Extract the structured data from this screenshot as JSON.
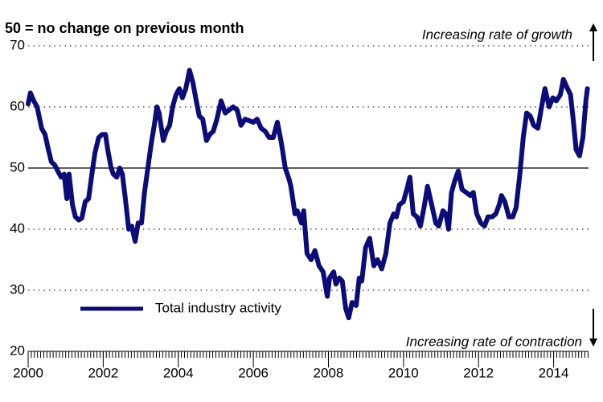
{
  "chart_data": {
    "type": "line",
    "title": "50 = no change on previous month",
    "annotations": [
      "Increasing rate of growth",
      "Increasing rate of contraction"
    ],
    "xlim": [
      2000,
      2014.93
    ],
    "xticks": [
      2000,
      2002,
      2004,
      2006,
      2008,
      2010,
      2012,
      2014
    ],
    "ylim": [
      20,
      70
    ],
    "yticks": [
      20,
      30,
      40,
      50,
      60,
      70
    ],
    "reference_line": 50,
    "grid": true,
    "legend": "lower left",
    "x": [
      2000.0,
      2000.06,
      2000.15,
      2000.24,
      2000.36,
      2000.45,
      2000.54,
      2000.62,
      2000.71,
      2000.79,
      2000.88,
      2000.96,
      2001.03,
      2001.09,
      2001.18,
      2001.26,
      2001.35,
      2001.43,
      2001.52,
      2001.61,
      2001.71,
      2001.78,
      2001.88,
      2001.97,
      2002.06,
      2002.12,
      2002.21,
      2002.27,
      2002.36,
      2002.44,
      2002.51,
      2002.59,
      2002.68,
      2002.76,
      2002.85,
      2002.93,
      2003.02,
      2003.1,
      2003.19,
      2003.28,
      2003.36,
      2003.43,
      2003.49,
      2003.6,
      2003.68,
      2003.77,
      2003.85,
      2003.94,
      2004.03,
      2004.11,
      2004.2,
      2004.3,
      2004.39,
      2004.48,
      2004.56,
      2004.65,
      2004.75,
      2004.84,
      2004.93,
      2005.03,
      2005.14,
      2005.25,
      2005.46,
      2005.57,
      2005.67,
      2005.78,
      2006.0,
      2006.1,
      2006.21,
      2006.32,
      2006.42,
      2006.53,
      2006.64,
      2006.75,
      2006.85,
      2006.96,
      2007.0,
      2007.11,
      2007.17,
      2007.28,
      2007.34,
      2007.43,
      2007.54,
      2007.64,
      2007.75,
      2007.86,
      2007.97,
      2008.03,
      2008.14,
      2008.2,
      2008.29,
      2008.37,
      2008.46,
      2008.54,
      2008.63,
      2008.74,
      2008.82,
      2008.89,
      2008.99,
      2009.1,
      2009.21,
      2009.31,
      2009.42,
      2009.53,
      2009.64,
      2009.74,
      2009.81,
      2009.89,
      2010.0,
      2010.11,
      2010.17,
      2010.26,
      2010.36,
      2010.45,
      2010.56,
      2010.64,
      2010.75,
      2010.86,
      2010.94,
      2011.05,
      2011.13,
      2011.2,
      2011.28,
      2011.37,
      2011.46,
      2011.56,
      2011.67,
      2011.78,
      2011.86,
      2011.95,
      2012.06,
      2012.16,
      2012.25,
      2012.36,
      2012.46,
      2012.55,
      2012.61,
      2012.7,
      2012.81,
      2012.91,
      2013.0,
      2013.1,
      2013.19,
      2013.28,
      2013.38,
      2013.47,
      2013.58,
      2013.68,
      2013.77,
      2013.88,
      2013.98,
      2014.07,
      2014.18,
      2014.26,
      2014.37,
      2014.45,
      2014.52,
      2014.6,
      2014.69,
      2014.78,
      2014.86,
      2014.9
    ],
    "series": [
      {
        "name": "Total industry activity",
        "color": "#0c0c78",
        "values": [
          60.5,
          62.3,
          61,
          60,
          56.5,
          55.5,
          53,
          51,
          50.5,
          49.5,
          48.5,
          49,
          45,
          49,
          44,
          42,
          41.5,
          41.8,
          44.5,
          45,
          49.5,
          52.5,
          55,
          55.5,
          55.5,
          53,
          50,
          49,
          48.5,
          50,
          49,
          45,
          40,
          40.5,
          38,
          41,
          41,
          46,
          50,
          54,
          57,
          60,
          59,
          54.5,
          56,
          57,
          60,
          62,
          63,
          61.5,
          63,
          66,
          64,
          61,
          58.5,
          58,
          54.5,
          55.5,
          56,
          58,
          61,
          59,
          60,
          59.5,
          57,
          58,
          57.5,
          58,
          56.5,
          56,
          55,
          55,
          57.5,
          54,
          50,
          48,
          47,
          42.5,
          43,
          41,
          43,
          36,
          35,
          36.5,
          34,
          33,
          29,
          32,
          33,
          31,
          32,
          31.5,
          27,
          25.5,
          28,
          27.5,
          32,
          31.5,
          37,
          38.5,
          34,
          35,
          33.5,
          36,
          41,
          42.5,
          42,
          44,
          44.5,
          47,
          48.5,
          42.5,
          42,
          40.5,
          44,
          47,
          44,
          41,
          40.5,
          43,
          42.5,
          40,
          46,
          48,
          49.5,
          46.5,
          46,
          45.5,
          46,
          42.5,
          41,
          40.5,
          42,
          42,
          42.5,
          44,
          45.5,
          44.5,
          42,
          42,
          43.5,
          49,
          55,
          59,
          58.5,
          57,
          56.5,
          60,
          63,
          60,
          61.5,
          61,
          62,
          64.5,
          63,
          62,
          58,
          53,
          52,
          55,
          61,
          63
        ]
      }
    ]
  }
}
